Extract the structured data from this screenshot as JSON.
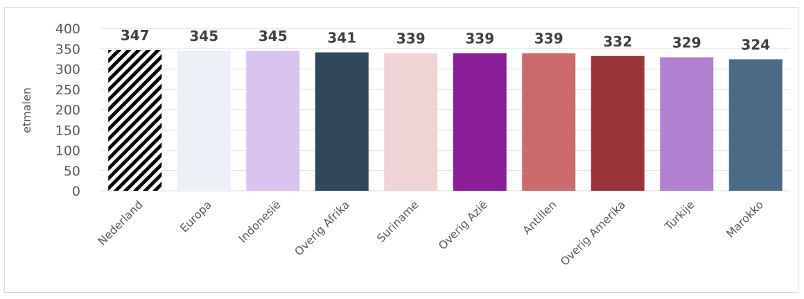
{
  "chart_data": {
    "type": "bar",
    "title": "",
    "xlabel": "",
    "ylabel": "etmalen",
    "ylim": [
      0,
      400
    ],
    "yticks": [
      0,
      50,
      100,
      150,
      200,
      250,
      300,
      350,
      400
    ],
    "grid": true,
    "legend": "none",
    "categories": [
      "Nederland",
      "Europa",
      "Indonesië",
      "Overig Afrika",
      "Suriname",
      "Overig Azië",
      "Antillen",
      "Overig Amerika",
      "Turkije",
      "Marokko"
    ],
    "values": [
      347,
      345,
      345,
      341,
      339,
      339,
      339,
      332,
      329,
      324
    ],
    "colors": [
      "pattern-hatch",
      "#edf0f6",
      "#d9c3f1",
      "#31475a",
      "#f0d3d5",
      "#8a1f98",
      "#cb6b6b",
      "#993538",
      "#b280cf",
      "#496b85"
    ],
    "hatch_colors": {
      "stripe": "#000000",
      "background": "#ffffff"
    }
  }
}
